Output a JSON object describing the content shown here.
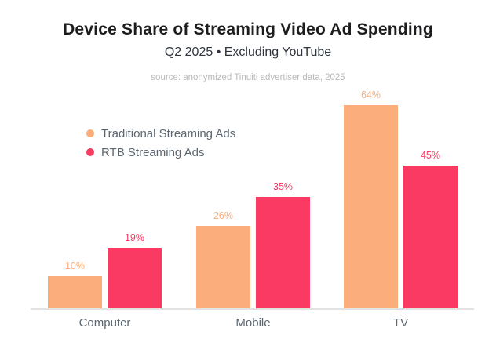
{
  "header": {
    "title": "Device Share of Streaming Video Ad Spending",
    "subtitle": "Q2 2025 • Excluding YouTube",
    "source": "source: anonymized Tinuiti advertiser data, 2025"
  },
  "legend": {
    "items": [
      {
        "label": "Traditional Streaming Ads",
        "color": "#fbae7b"
      },
      {
        "label": "RTB Streaming Ads",
        "color": "#fa3a62"
      }
    ]
  },
  "chart_data": {
    "type": "bar",
    "title": "Device Share of Streaming Video Ad Spending",
    "subtitle": "Q2 2025 • Excluding YouTube",
    "source": "source: anonymized Tinuiti advertiser data, 2025",
    "categories": [
      "Computer",
      "Mobile",
      "TV"
    ],
    "series": [
      {
        "name": "Traditional Streaming Ads",
        "color": "#fbae7b",
        "values": [
          10,
          26,
          64
        ],
        "labels": [
          "10%",
          "26%",
          "64%"
        ]
      },
      {
        "name": "RTB Streaming Ads",
        "color": "#fa3a62",
        "values": [
          19,
          35,
          45
        ],
        "labels": [
          "19%",
          "35%",
          "45%"
        ]
      }
    ],
    "value_suffix": "%",
    "ylim": [
      0,
      70
    ],
    "grid": false,
    "legend_position": "upper-left",
    "axis_line_color": "#e2e2e2",
    "category_label_color": "#5b6670"
  }
}
